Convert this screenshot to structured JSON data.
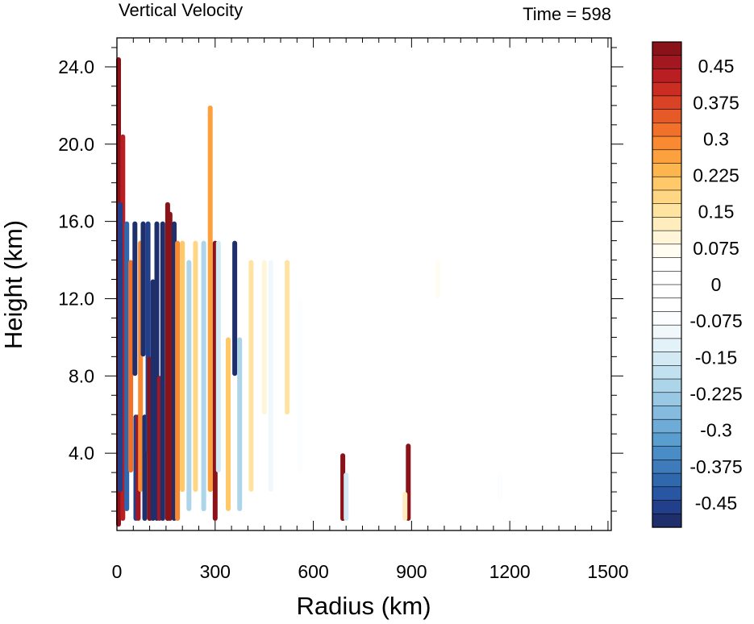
{
  "chart_data": {
    "type": "heatmap",
    "title": "Vertical Velocity",
    "subtitle": "Time = 598",
    "xlabel": "Radius (km)",
    "ylabel": "Height (km)",
    "xlim": [
      0,
      1510
    ],
    "ylim": [
      0,
      25.5
    ],
    "x_ticks": [
      0,
      300,
      600,
      900,
      1200,
      1500
    ],
    "x_tick_labels": [
      "0",
      "300",
      "600",
      "900",
      "1200",
      "1500"
    ],
    "y_ticks": [
      4,
      8,
      12,
      16,
      20,
      24
    ],
    "y_tick_labels": [
      "4.0",
      "8.0",
      "12.0",
      "16.0",
      "20.0",
      "24.0"
    ],
    "colorbar": {
      "min": -0.5,
      "max": 0.5,
      "step": 0.025,
      "labels": [
        {
          "value": 0.45,
          "text": "0.45"
        },
        {
          "value": 0.375,
          "text": "0.375"
        },
        {
          "value": 0.3,
          "text": "0.3"
        },
        {
          "value": 0.225,
          "text": "0.225"
        },
        {
          "value": 0.15,
          "text": "0.15"
        },
        {
          "value": 0.075,
          "text": "0.075"
        },
        {
          "value": 0,
          "text": "0"
        },
        {
          "value": -0.075,
          "text": "-0.075"
        },
        {
          "value": -0.15,
          "text": "-0.15"
        },
        {
          "value": -0.225,
          "text": "-0.225"
        },
        {
          "value": -0.3,
          "text": "-0.3"
        },
        {
          "value": -0.375,
          "text": "-0.375"
        },
        {
          "value": -0.45,
          "text": "-0.45"
        }
      ],
      "colors": [
        "#1e2f6b",
        "#213f8a",
        "#2856a2",
        "#3068ae",
        "#3d7bbb",
        "#4a8dc6",
        "#5a9dcf",
        "#6eacd7",
        "#84bbde",
        "#99c8e4",
        "#add5ea",
        "#c1e0f0",
        "#d3eaf5",
        "#e3f2f9",
        "#f1f8fc",
        "#fbfdfe",
        "#ffffff",
        "#ffffff",
        "#ffffff",
        "#ffffff",
        "#fffdf2",
        "#fff6d9",
        "#ffedbd",
        "#ffe3a0",
        "#ffd784",
        "#ffc868",
        "#fdb64e",
        "#fca13e",
        "#f98a32",
        "#f1712b",
        "#e65a28",
        "#d94225",
        "#cc2d23",
        "#b81e22",
        "#a31820",
        "#8a1219"
      ]
    },
    "contours": [
      {
        "r": 5,
        "z0": 0.2,
        "z1": 24.5,
        "w": 0.5
      },
      {
        "r": 18,
        "z0": 0.5,
        "z1": 20.5,
        "w": 0.42
      },
      {
        "r": 10,
        "z0": 2,
        "z1": 17,
        "w": -0.45
      },
      {
        "r": 30,
        "z0": 1,
        "z1": 16,
        "w": -0.4
      },
      {
        "r": 42,
        "z0": 3,
        "z1": 14,
        "w": 0.32
      },
      {
        "r": 55,
        "z0": 8,
        "z1": 16,
        "w": -0.48
      },
      {
        "r": 58,
        "z0": 0.5,
        "z1": 6,
        "w": -0.45
      },
      {
        "r": 65,
        "z0": 0.5,
        "z1": 6,
        "w": 0.45
      },
      {
        "r": 72,
        "z0": 2,
        "z1": 15,
        "w": 0.3
      },
      {
        "r": 80,
        "z0": 9,
        "z1": 16,
        "w": -0.5
      },
      {
        "r": 85,
        "z0": 0.5,
        "z1": 6,
        "w": -0.48
      },
      {
        "r": 95,
        "z0": 4,
        "z1": 16,
        "w": -0.45
      },
      {
        "r": 100,
        "z0": 0.5,
        "z1": 9,
        "w": 0.5
      },
      {
        "r": 110,
        "z0": 0.5,
        "z1": 13,
        "w": -0.5
      },
      {
        "r": 122,
        "z0": 0.5,
        "z1": 16,
        "w": -0.5
      },
      {
        "r": 130,
        "z0": 0.5,
        "z1": 8,
        "w": 0.45
      },
      {
        "r": 140,
        "z0": 0.5,
        "z1": 16,
        "w": -0.5
      },
      {
        "r": 155,
        "z0": 0.5,
        "z1": 17,
        "w": 0.5
      },
      {
        "r": 162,
        "z0": 0.5,
        "z1": 16.5,
        "w": 0.5
      },
      {
        "r": 175,
        "z0": 0.5,
        "z1": 16,
        "w": -0.5
      },
      {
        "r": 185,
        "z0": 0.5,
        "z1": 15,
        "w": 0.3
      },
      {
        "r": 200,
        "z0": 2,
        "z1": 15,
        "w": 0.22
      },
      {
        "r": 220,
        "z0": 1,
        "z1": 14,
        "w": -0.22
      },
      {
        "r": 240,
        "z0": 2,
        "z1": 15,
        "w": 0.18
      },
      {
        "r": 265,
        "z0": 1,
        "z1": 15,
        "w": -0.2
      },
      {
        "r": 285,
        "z0": 2,
        "z1": 22,
        "w": 0.25
      },
      {
        "r": 300,
        "z0": 0.5,
        "z1": 15,
        "w": 0.5
      },
      {
        "r": 310,
        "z0": 3,
        "z1": 15,
        "w": -0.15
      },
      {
        "r": 340,
        "z0": 1,
        "z1": 10,
        "w": 0.22
      },
      {
        "r": 360,
        "z0": 8,
        "z1": 15,
        "w": -0.5
      },
      {
        "r": 375,
        "z0": 1,
        "z1": 10,
        "w": -0.2
      },
      {
        "r": 410,
        "z0": 2,
        "z1": 14,
        "w": 0.14
      },
      {
        "r": 450,
        "z0": 6,
        "z1": 14,
        "w": 0.1
      },
      {
        "r": 470,
        "z0": 2,
        "z1": 14,
        "w": -0.1
      },
      {
        "r": 520,
        "z0": 6,
        "z1": 14,
        "w": 0.14
      },
      {
        "r": 560,
        "z0": 3,
        "z1": 12,
        "w": -0.08
      },
      {
        "r": 690,
        "z0": 0.5,
        "z1": 4,
        "w": 0.5
      },
      {
        "r": 700,
        "z0": 0.5,
        "z1": 3,
        "w": -0.15
      },
      {
        "r": 890,
        "z0": 0.5,
        "z1": 4.5,
        "w": 0.5
      },
      {
        "r": 880,
        "z0": 0.5,
        "z1": 2,
        "w": 0.12
      },
      {
        "r": 980,
        "z0": 12,
        "z1": 14,
        "w": 0.08
      },
      {
        "r": 1170,
        "z0": 1.5,
        "z1": 3,
        "w": -0.08
      }
    ]
  }
}
